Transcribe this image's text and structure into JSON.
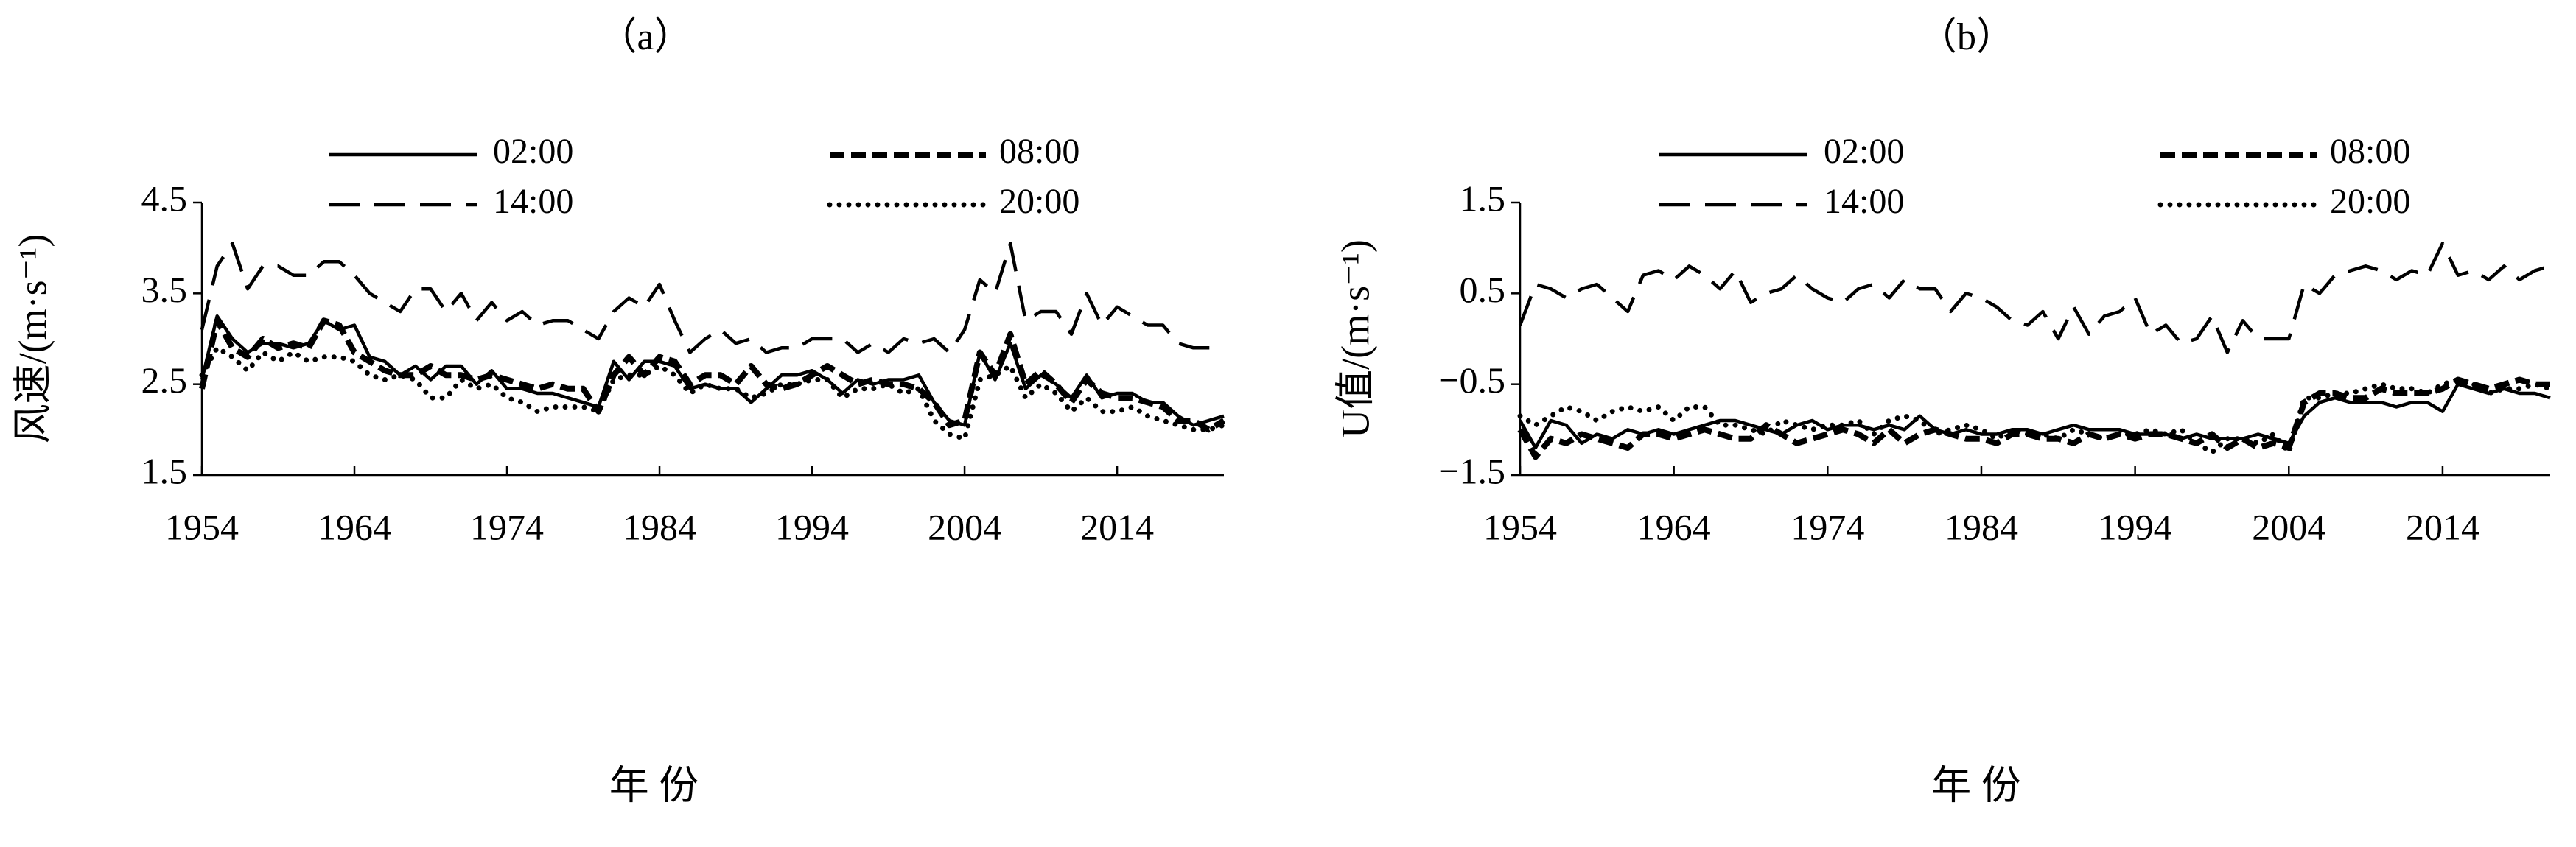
{
  "chart_data": [
    {
      "type": "line",
      "title": "（a）",
      "xlabel": "年 份",
      "ylabel": "风速/(m·s⁻¹)",
      "legend": "top",
      "x": [
        1954,
        1955,
        1956,
        1957,
        1958,
        1959,
        1960,
        1961,
        1962,
        1963,
        1964,
        1965,
        1966,
        1967,
        1968,
        1969,
        1970,
        1971,
        1972,
        1973,
        1974,
        1975,
        1976,
        1977,
        1978,
        1979,
        1980,
        1981,
        1982,
        1983,
        1984,
        1985,
        1986,
        1987,
        1988,
        1989,
        1990,
        1991,
        1992,
        1993,
        1994,
        1995,
        1996,
        1997,
        1998,
        1999,
        2000,
        2001,
        2002,
        2003,
        2004,
        2005,
        2006,
        2007,
        2008,
        2009,
        2010,
        2011,
        2012,
        2013,
        2014,
        2015,
        2016,
        2017,
        2018,
        2019,
        2020,
        2021
      ],
      "xlim": [
        1954,
        2021
      ],
      "xticks": [
        1954,
        1964,
        1974,
        1984,
        1994,
        2004,
        2014
      ],
      "ylim": [
        1.5,
        4.5
      ],
      "yticks": [
        1.5,
        2.5,
        3.5,
        4.5
      ],
      "series": [
        {
          "name": "02:00",
          "color": "#000000",
          "style": "solid",
          "values": [
            2.55,
            3.25,
            3.0,
            2.85,
            2.95,
            2.95,
            2.9,
            2.95,
            3.2,
            3.1,
            3.15,
            2.8,
            2.75,
            2.6,
            2.7,
            2.55,
            2.7,
            2.7,
            2.5,
            2.65,
            2.45,
            2.45,
            2.4,
            2.4,
            2.35,
            2.3,
            2.25,
            2.75,
            2.55,
            2.75,
            2.75,
            2.7,
            2.45,
            2.5,
            2.45,
            2.45,
            2.3,
            2.45,
            2.6,
            2.6,
            2.65,
            2.55,
            2.4,
            2.55,
            2.5,
            2.55,
            2.55,
            2.6,
            2.3,
            2.1,
            2.05,
            2.85,
            2.55,
            2.95,
            2.45,
            2.6,
            2.5,
            2.35,
            2.6,
            2.35,
            2.4,
            2.4,
            2.3,
            2.3,
            2.15,
            2.05,
            2.1,
            2.15
          ]
        },
        {
          "name": "08:00",
          "color": "#000000",
          "style": "dashed",
          "values": [
            2.45,
            3.2,
            2.9,
            2.8,
            3.0,
            2.9,
            2.95,
            2.9,
            3.2,
            3.15,
            2.85,
            2.75,
            2.65,
            2.6,
            2.6,
            2.7,
            2.6,
            2.6,
            2.55,
            2.6,
            2.55,
            2.5,
            2.45,
            2.5,
            2.45,
            2.45,
            2.2,
            2.6,
            2.8,
            2.6,
            2.8,
            2.75,
            2.5,
            2.6,
            2.6,
            2.5,
            2.7,
            2.5,
            2.45,
            2.5,
            2.6,
            2.7,
            2.6,
            2.5,
            2.55,
            2.5,
            2.5,
            2.45,
            2.3,
            2.05,
            2.1,
            2.85,
            2.6,
            3.05,
            2.5,
            2.65,
            2.5,
            2.3,
            2.55,
            2.4,
            2.35,
            2.35,
            2.3,
            2.25,
            2.1,
            2.1,
            2.0,
            2.1
          ]
        },
        {
          "name": "14:00",
          "color": "#000000",
          "style": "long-dashed",
          "values": [
            3.1,
            3.8,
            4.05,
            3.55,
            3.8,
            3.8,
            3.7,
            3.7,
            3.85,
            3.85,
            3.7,
            3.5,
            3.4,
            3.3,
            3.55,
            3.55,
            3.3,
            3.5,
            3.2,
            3.4,
            3.2,
            3.3,
            3.15,
            3.2,
            3.2,
            3.1,
            3.0,
            3.3,
            3.45,
            3.35,
            3.6,
            3.2,
            2.85,
            3.0,
            3.1,
            2.95,
            3.0,
            2.85,
            2.9,
            2.9,
            3.0,
            3.0,
            3.0,
            2.85,
            2.95,
            2.85,
            3.0,
            2.95,
            3.0,
            2.85,
            3.1,
            3.65,
            3.5,
            4.05,
            3.2,
            3.3,
            3.3,
            3.05,
            3.5,
            3.15,
            3.35,
            3.25,
            3.15,
            3.15,
            2.95,
            2.9,
            2.9,
            2.9
          ]
        },
        {
          "name": "20:00",
          "color": "#000000",
          "style": "dotted",
          "values": [
            2.6,
            2.9,
            2.8,
            2.65,
            2.85,
            2.75,
            2.85,
            2.75,
            2.8,
            2.8,
            2.75,
            2.6,
            2.55,
            2.6,
            2.55,
            2.35,
            2.35,
            2.55,
            2.45,
            2.5,
            2.35,
            2.3,
            2.2,
            2.25,
            2.25,
            2.25,
            2.2,
            2.55,
            2.6,
            2.6,
            2.7,
            2.6,
            2.4,
            2.5,
            2.45,
            2.45,
            2.35,
            2.4,
            2.5,
            2.5,
            2.55,
            2.55,
            2.35,
            2.45,
            2.45,
            2.5,
            2.4,
            2.45,
            2.1,
            1.95,
            1.9,
            2.55,
            2.6,
            2.7,
            2.35,
            2.5,
            2.4,
            2.2,
            2.35,
            2.2,
            2.2,
            2.25,
            2.15,
            2.1,
            2.05,
            2.0,
            2.0,
            2.05
          ]
        }
      ]
    },
    {
      "type": "line",
      "title": "（b）",
      "xlabel": "年 份",
      "ylabel": "U值/(m·s⁻¹)",
      "legend": "top",
      "x": [
        1954,
        1955,
        1956,
        1957,
        1958,
        1959,
        1960,
        1961,
        1962,
        1963,
        1964,
        1965,
        1966,
        1967,
        1968,
        1969,
        1970,
        1971,
        1972,
        1973,
        1974,
        1975,
        1976,
        1977,
        1978,
        1979,
        1980,
        1981,
        1982,
        1983,
        1984,
        1985,
        1986,
        1987,
        1988,
        1989,
        1990,
        1991,
        1992,
        1993,
        1994,
        1995,
        1996,
        1997,
        1998,
        1999,
        2000,
        2001,
        2002,
        2003,
        2004,
        2005,
        2006,
        2007,
        2008,
        2009,
        2010,
        2011,
        2012,
        2013,
        2014,
        2015,
        2016,
        2017,
        2018,
        2019,
        2020,
        2021
      ],
      "xlim": [
        1954,
        2021
      ],
      "xticks": [
        1954,
        1964,
        1974,
        1984,
        1994,
        2004,
        2014
      ],
      "ylim": [
        -1.5,
        1.5
      ],
      "yticks": [
        {
          "value": -1.5,
          "label": "−1.5"
        },
        {
          "value": -0.5,
          "label": "−0.5"
        },
        0.5,
        1.5
      ],
      "series": [
        {
          "name": "02:00",
          "color": "#000000",
          "style": "solid",
          "values": [
            -0.9,
            -1.2,
            -0.9,
            -0.95,
            -1.15,
            -1.05,
            -1.1,
            -1.0,
            -1.05,
            -1.0,
            -1.05,
            -1.0,
            -0.95,
            -0.9,
            -0.9,
            -0.95,
            -1.0,
            -1.05,
            -0.95,
            -0.9,
            -1.0,
            -0.95,
            -0.95,
            -1.0,
            -0.95,
            -1.0,
            -0.85,
            -1.0,
            -1.05,
            -1.0,
            -1.05,
            -1.05,
            -1.0,
            -1.0,
            -1.05,
            -1.0,
            -0.95,
            -1.0,
            -1.0,
            -1.0,
            -1.05,
            -1.05,
            -1.05,
            -1.1,
            -1.05,
            -1.1,
            -1.1,
            -1.1,
            -1.05,
            -1.1,
            -1.15,
            -0.85,
            -0.7,
            -0.65,
            -0.7,
            -0.7,
            -0.7,
            -0.75,
            -0.7,
            -0.7,
            -0.8,
            -0.5,
            -0.55,
            -0.6,
            -0.55,
            -0.6,
            -0.6,
            -0.65
          ]
        },
        {
          "name": "08:00",
          "color": "#000000",
          "style": "dashed",
          "values": [
            -1.0,
            -1.3,
            -1.1,
            -1.15,
            -1.05,
            -1.1,
            -1.15,
            -1.2,
            -1.05,
            -1.05,
            -1.1,
            -1.05,
            -1.0,
            -1.05,
            -1.1,
            -1.1,
            -0.95,
            -1.05,
            -1.15,
            -1.1,
            -1.05,
            -1.0,
            -1.05,
            -1.15,
            -1.0,
            -1.15,
            -1.05,
            -1.0,
            -1.05,
            -1.1,
            -1.1,
            -1.15,
            -1.05,
            -1.05,
            -1.1,
            -1.1,
            -1.15,
            -1.05,
            -1.1,
            -1.05,
            -1.1,
            -1.05,
            -1.05,
            -1.1,
            -1.15,
            -1.05,
            -1.2,
            -1.1,
            -1.2,
            -1.15,
            -1.2,
            -0.7,
            -0.6,
            -0.6,
            -0.65,
            -0.65,
            -0.55,
            -0.6,
            -0.6,
            -0.6,
            -0.55,
            -0.45,
            -0.5,
            -0.55,
            -0.5,
            -0.45,
            -0.5,
            -0.5
          ]
        },
        {
          "name": "14:00",
          "color": "#000000",
          "style": "long-dashed",
          "values": [
            0.15,
            0.6,
            0.55,
            0.45,
            0.55,
            0.6,
            0.45,
            0.3,
            0.7,
            0.75,
            0.65,
            0.8,
            0.7,
            0.55,
            0.75,
            0.4,
            0.5,
            0.55,
            0.7,
            0.55,
            0.45,
            0.4,
            0.55,
            0.6,
            0.45,
            0.65,
            0.55,
            0.55,
            0.3,
            0.5,
            0.45,
            0.35,
            0.2,
            0.15,
            0.3,
            0.0,
            0.35,
            0.05,
            0.25,
            0.3,
            0.45,
            0.05,
            0.15,
            -0.05,
            0.0,
            0.25,
            -0.15,
            0.2,
            0.0,
            0.0,
            0.0,
            0.6,
            0.5,
            0.7,
            0.75,
            0.8,
            0.75,
            0.65,
            0.75,
            0.7,
            1.05,
            0.7,
            0.75,
            0.65,
            0.8,
            0.65,
            0.75,
            0.8
          ]
        },
        {
          "name": "20:00",
          "color": "#000000",
          "style": "dotted",
          "values": [
            -0.85,
            -0.95,
            -0.85,
            -0.75,
            -0.8,
            -0.9,
            -0.8,
            -0.75,
            -0.8,
            -0.75,
            -0.9,
            -0.75,
            -0.75,
            -0.95,
            -0.95,
            -1.0,
            -1.05,
            -0.9,
            -0.95,
            -1.0,
            -0.95,
            -0.95,
            -0.9,
            -1.05,
            -0.9,
            -0.85,
            -0.9,
            -1.05,
            -1.0,
            -0.95,
            -1.0,
            -1.1,
            -1.0,
            -1.05,
            -1.05,
            -1.1,
            -1.0,
            -1.05,
            -1.1,
            -1.05,
            -1.05,
            -1.0,
            -1.05,
            -1.0,
            -1.15,
            -1.25,
            -1.1,
            -1.1,
            -1.15,
            -1.05,
            -1.25,
            -0.65,
            -0.65,
            -0.6,
            -0.6,
            -0.55,
            -0.5,
            -0.55,
            -0.55,
            -0.6,
            -0.5,
            -0.45,
            -0.5,
            -0.6,
            -0.55,
            -0.55,
            -0.5,
            -0.55
          ]
        }
      ]
    }
  ]
}
